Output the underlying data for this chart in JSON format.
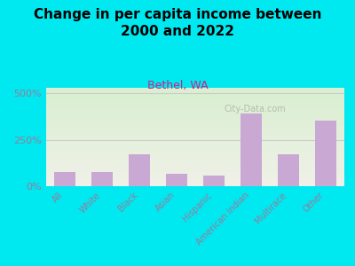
{
  "title": "Change in per capita income between\n2000 and 2022",
  "subtitle": "Bethel, WA",
  "categories": [
    "All",
    "White",
    "Black",
    "Asian",
    "Hispanic",
    "American Indian",
    "Multirace",
    "Other"
  ],
  "values": [
    75,
    75,
    170,
    65,
    55,
    390,
    170,
    355
  ],
  "bar_color": "#c9a8d4",
  "title_fontsize": 11,
  "subtitle_fontsize": 9,
  "subtitle_color": "#cc2288",
  "background_outer": "#00e8f0",
  "background_inner_top": "#d8efd0",
  "background_inner_bottom": "#f0f0e8",
  "ylabel_ticks": [
    0,
    250,
    500
  ],
  "ylabel_labels": [
    "0%",
    "250%",
    "500%"
  ],
  "ylim": [
    0,
    530
  ],
  "watermark": "City-Data.com",
  "tick_label_color": "#9b7a9b",
  "axis_label_color": "#9b7a9b",
  "gridline_color": "#cccccc"
}
